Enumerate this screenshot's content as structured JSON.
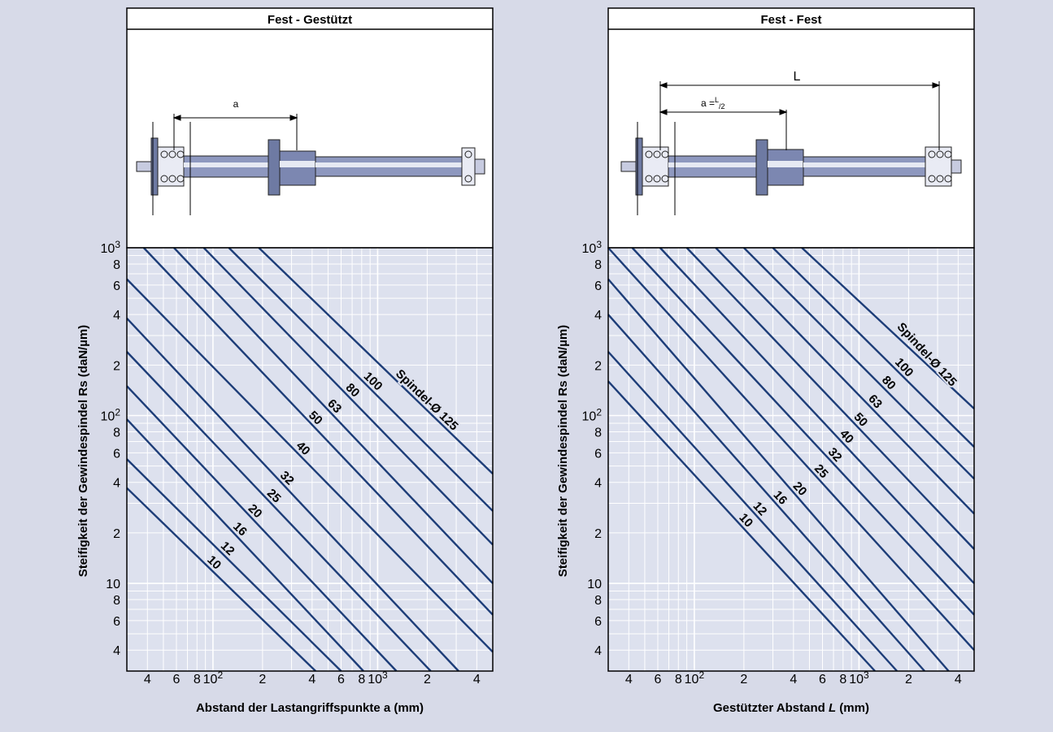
{
  "colors": {
    "background": "#d7dae8",
    "plot_area": "#dde1ee",
    "grid_major": "#ffffff",
    "line": "#1d3d78",
    "frame": "#000000"
  },
  "panels": [
    {
      "title": "Fest - Gestützt",
      "ylabel": "Steifigkeit der Gewindespindel Rs (daN/µm)",
      "xlabel": "Abstand der Lastangriffspunkte a (mm)",
      "diagram_labels": [
        "a"
      ],
      "curve_labels": [
        "Spindel-Ø 125",
        "100",
        "80",
        "63",
        "50",
        "40",
        "32",
        "25",
        "20",
        "16",
        "12",
        "10"
      ]
    },
    {
      "title": "Fest - Fest",
      "ylabel": "Steifigkeit der Gewindespindel Rs (daN/µm)",
      "xlabel_main": "Gestützter Abstand ",
      "xlabel_italic": "L",
      "xlabel_unit": " (mm)",
      "diagram_labels": [
        "L",
        "a =",
        "L",
        "/2"
      ],
      "curve_labels": [
        "Spindel-Ø 125",
        "100",
        "80",
        "63",
        "50",
        "40",
        "32",
        "25",
        "20",
        "16",
        "12",
        "10"
      ]
    }
  ],
  "axis_ticks": {
    "x": [
      "4",
      "6",
      "8",
      "10²",
      "2",
      "4",
      "6",
      "8",
      "10³",
      "2",
      "4"
    ],
    "y": [
      "10³",
      "8",
      "6",
      "4",
      "2",
      "10²",
      "8",
      "6",
      "4",
      "2",
      "10",
      "8",
      "6",
      "4"
    ]
  },
  "chart_data": [
    {
      "type": "line",
      "title": "Fest - Gestützt",
      "xlabel": "Abstand der Lastangriffspunkte a (mm)",
      "ylabel": "Steifigkeit der Gewindespindel Rs (daN/µm)",
      "x_scale": "log",
      "y_scale": "log",
      "xlim": [
        30,
        5000
      ],
      "ylim": [
        3,
        1000
      ],
      "grid": true,
      "series": [
        {
          "name": "10",
          "x": [
            30,
            420
          ],
          "y": [
            37,
            3
          ]
        },
        {
          "name": "12",
          "x": [
            30,
            600
          ],
          "y": [
            55,
            3
          ]
        },
        {
          "name": "16",
          "x": [
            30,
            820
          ],
          "y": [
            95,
            3
          ]
        },
        {
          "name": "20",
          "x": [
            30,
            1300
          ],
          "y": [
            150,
            3
          ]
        },
        {
          "name": "25",
          "x": [
            30,
            2100
          ],
          "y": [
            240,
            3
          ]
        },
        {
          "name": "32",
          "x": [
            30,
            3100
          ],
          "y": [
            380,
            3
          ]
        },
        {
          "name": "40",
          "x": [
            30,
            5000
          ],
          "y": [
            650,
            3.9
          ]
        },
        {
          "name": "50",
          "x": [
            38,
            5000
          ],
          "y": [
            1000,
            6.5
          ]
        },
        {
          "name": "63",
          "x": [
            58,
            5000
          ],
          "y": [
            1000,
            10
          ]
        },
        {
          "name": "80",
          "x": [
            88,
            5000
          ],
          "y": [
            1000,
            17
          ]
        },
        {
          "name": "100",
          "x": [
            125,
            5000
          ],
          "y": [
            1000,
            27
          ]
        },
        {
          "name": "Spindel-Ø 125",
          "x": [
            190,
            5000
          ],
          "y": [
            1000,
            45
          ]
        }
      ]
    },
    {
      "type": "line",
      "title": "Fest - Fest",
      "xlabel": "Gestützter Abstand L (mm)",
      "ylabel": "Steifigkeit der Gewindespindel Rs (daN/µm)",
      "x_scale": "log",
      "y_scale": "log",
      "xlim": [
        30,
        5000
      ],
      "ylim": [
        3,
        1000
      ],
      "grid": true,
      "series": [
        {
          "name": "10",
          "x": [
            30,
            1250
          ],
          "y": [
            160,
            3
          ]
        },
        {
          "name": "12",
          "x": [
            30,
            1700
          ],
          "y": [
            240,
            3
          ]
        },
        {
          "name": "16",
          "x": [
            30,
            2500
          ],
          "y": [
            400,
            3
          ]
        },
        {
          "name": "20",
          "x": [
            30,
            3500
          ],
          "y": [
            650,
            3
          ]
        },
        {
          "name": "25",
          "x": [
            30,
            5000
          ],
          "y": [
            1000,
            4
          ]
        },
        {
          "name": "32",
          "x": [
            42,
            5000
          ],
          "y": [
            1000,
            6.5
          ]
        },
        {
          "name": "40",
          "x": [
            62,
            5000
          ],
          "y": [
            1000,
            10
          ]
        },
        {
          "name": "50",
          "x": [
            90,
            5000
          ],
          "y": [
            1000,
            16
          ]
        },
        {
          "name": "63",
          "x": [
            135,
            5000
          ],
          "y": [
            1000,
            26
          ]
        },
        {
          "name": "80",
          "x": [
            200,
            5000
          ],
          "y": [
            1000,
            42
          ]
        },
        {
          "name": "100",
          "x": [
            300,
            5000
          ],
          "y": [
            1000,
            65
          ]
        },
        {
          "name": "Spindel-Ø 125",
          "x": [
            450,
            5000
          ],
          "y": [
            1000,
            110
          ]
        }
      ]
    }
  ]
}
